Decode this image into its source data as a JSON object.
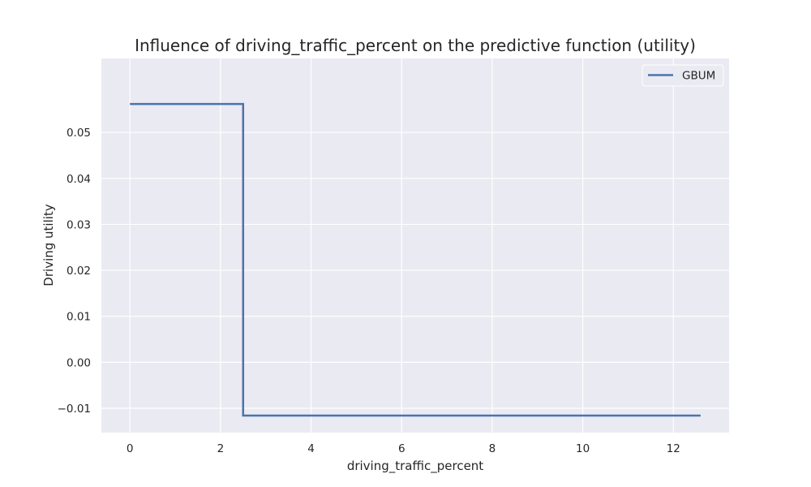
{
  "chart_data": {
    "type": "line",
    "title": "Influence of driving_traffic_percent on the predictive function (utility)",
    "xlabel": "driving_traffic_percent",
    "ylabel": "Driving utility",
    "xlim": [
      -0.63,
      13.23
    ],
    "ylim": [
      -0.0153,
      0.0661
    ],
    "xticks": [
      0,
      2,
      4,
      6,
      8,
      10,
      12
    ],
    "xtick_labels": [
      "0",
      "2",
      "4",
      "6",
      "8",
      "10",
      "12"
    ],
    "yticks": [
      -0.01,
      0.0,
      0.01,
      0.02,
      0.03,
      0.04,
      0.05
    ],
    "ytick_labels": [
      "−0.01",
      "0.00",
      "0.01",
      "0.02",
      "0.03",
      "0.04",
      "0.05"
    ],
    "grid": true,
    "legend_position": "top-right",
    "series": [
      {
        "name": "GBUM",
        "color": "#4c72b0",
        "step": true,
        "x": [
          0,
          2.5,
          2.5,
          12.6
        ],
        "y": [
          0.0562,
          0.0562,
          -0.0116,
          -0.0116
        ]
      }
    ]
  },
  "colors": {
    "plot_background": "#eaeaf2",
    "grid": "#ffffff"
  }
}
